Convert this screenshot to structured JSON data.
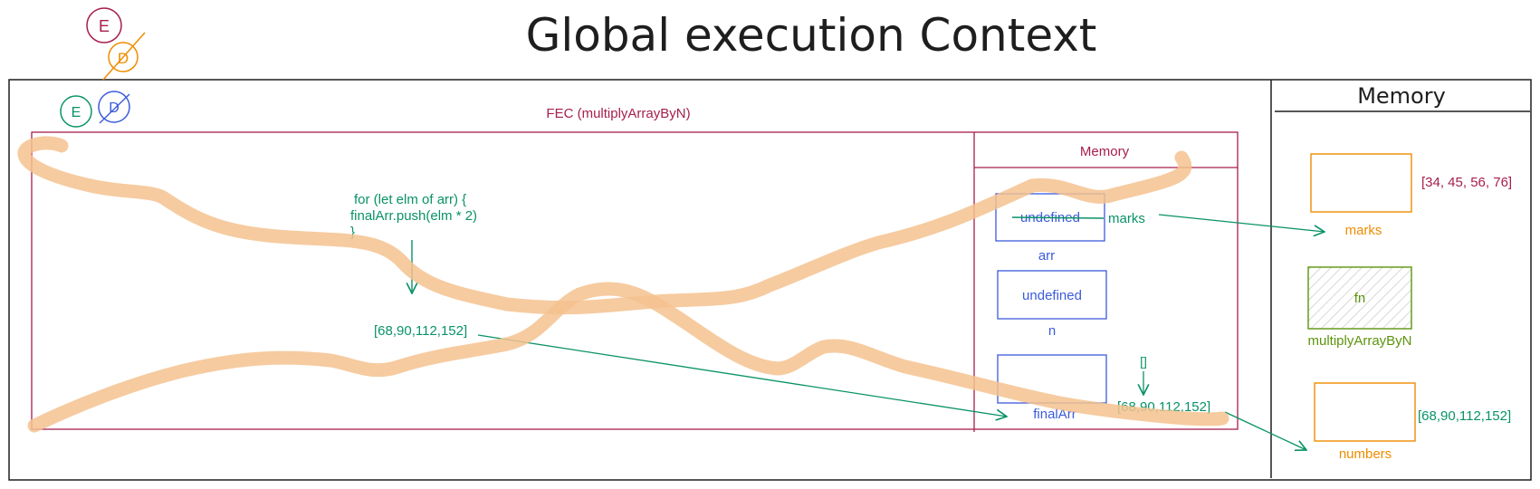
{
  "title": "Global execution Context",
  "gec_memory": {
    "heading": "Memory",
    "items": [
      {
        "value": "[34, 45, 56, 76]",
        "name": "marks"
      },
      {
        "value": "fn",
        "name": "multiplyArrayByN"
      },
      {
        "value": "[68,90,112,152]",
        "name": "numbers"
      }
    ]
  },
  "markers": {
    "top": [
      "E",
      "D"
    ],
    "inner": [
      "E",
      "D"
    ]
  },
  "fec": {
    "title": "FEC (multiplyArrayByN)",
    "code": [
      "for (let elm of arr) {",
      "finalArr.push(elm * 2)",
      "}"
    ],
    "result": "[68,90,112,152]",
    "memory": {
      "heading": "Memory",
      "arr": {
        "value": "undefined",
        "name": "arr",
        "ref": "marks"
      },
      "n": {
        "value": "undefined",
        "name": "n"
      },
      "finalArr": {
        "name": "finalArr",
        "initial": "[]",
        "value": "[68,90,112,152]"
      }
    }
  },
  "colors": {
    "ink": "#1e1e1e",
    "crimson": "#a61e4d",
    "green": "#099268",
    "blue": "#3b5bdb",
    "orange": "#f08c00",
    "olive": "#5c940d",
    "highlight": "#f4c28f"
  }
}
